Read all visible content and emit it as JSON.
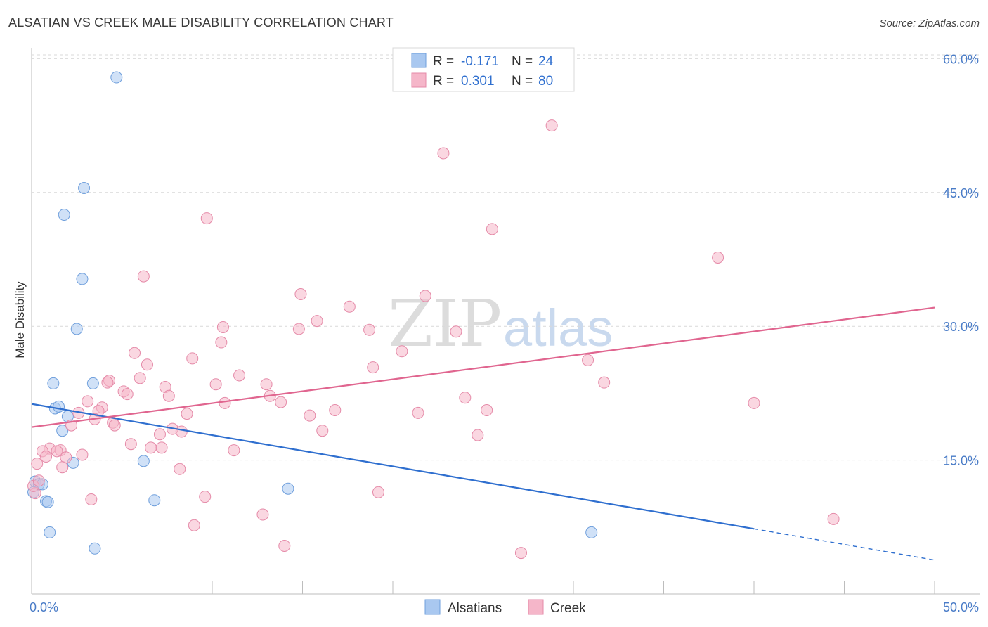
{
  "header": {
    "title": "ALSATIAN VS CREEK MALE DISABILITY CORRELATION CHART",
    "source": "Source: ZipAtlas.com"
  },
  "watermark": {
    "zip": "ZIP",
    "atlas": "atlas"
  },
  "legend_top": {
    "rows": [
      {
        "r_label": "R =",
        "r_value": "-0.171",
        "n_label": "N =",
        "n_value": "24",
        "color": "#a9c8f0"
      },
      {
        "r_label": "R =",
        "r_value": "0.301",
        "n_label": "N =",
        "n_value": "80",
        "color": "#f5b6c9"
      }
    ]
  },
  "legend_bottom": {
    "items": [
      {
        "label": "Alsatians",
        "color": "#a9c8f0"
      },
      {
        "label": "Creek",
        "color": "#f5b6c9"
      }
    ]
  },
  "chart_data": {
    "type": "scatter",
    "title": "ALSATIAN VS CREEK MALE DISABILITY CORRELATION CHART",
    "xlabel": "",
    "ylabel": "Male Disability",
    "xlim": [
      0,
      50
    ],
    "ylim": [
      0,
      62
    ],
    "x_tick_labels": [
      {
        "value": 0,
        "label": "0.0%"
      },
      {
        "value": 50,
        "label": "50.0%"
      }
    ],
    "y_tick_labels": [
      {
        "value": 15,
        "label": "15.0%"
      },
      {
        "value": 30,
        "label": "30.0%"
      },
      {
        "value": 45,
        "label": "45.0%"
      },
      {
        "value": 60,
        "label": "60.0%"
      }
    ],
    "grid": "horizontal dashed",
    "legend_position": "top-center",
    "series": [
      {
        "name": "Alsatians",
        "color": "#a9c8f0",
        "stroke": "#6f9fdc",
        "trend_color": "#2f6fcf",
        "trend": {
          "x0": 0,
          "y0": 21.3,
          "x1": 40,
          "y1": 7.3,
          "dash_to_x": 50,
          "dash_to_y": 3.8
        },
        "points": [
          [
            4.7,
            57.9
          ],
          [
            2.9,
            45.5
          ],
          [
            1.8,
            42.5
          ],
          [
            2.8,
            35.3
          ],
          [
            2.5,
            29.7
          ],
          [
            1.2,
            23.6
          ],
          [
            3.4,
            23.6
          ],
          [
            1.3,
            20.8
          ],
          [
            1.5,
            21.0
          ],
          [
            2.0,
            19.9
          ],
          [
            1.7,
            18.3
          ],
          [
            2.3,
            14.7
          ],
          [
            6.2,
            14.9
          ],
          [
            0.2,
            12.6
          ],
          [
            0.4,
            12.3
          ],
          [
            0.6,
            12.3
          ],
          [
            0.1,
            11.4
          ],
          [
            0.8,
            10.4
          ],
          [
            0.9,
            10.3
          ],
          [
            6.8,
            10.5
          ],
          [
            14.2,
            11.8
          ],
          [
            1.0,
            6.9
          ],
          [
            3.5,
            5.1
          ],
          [
            31.0,
            6.9
          ]
        ]
      },
      {
        "name": "Creek",
        "color": "#f5b6c9",
        "stroke": "#e58aa8",
        "trend_color": "#e0658f",
        "trend": {
          "x0": 0,
          "y0": 18.7,
          "x1": 50,
          "y1": 32.1
        },
        "points": [
          [
            28.8,
            52.5
          ],
          [
            22.8,
            49.4
          ],
          [
            9.7,
            42.1
          ],
          [
            25.5,
            40.9
          ],
          [
            38.0,
            37.7
          ],
          [
            6.2,
            35.6
          ],
          [
            14.9,
            33.6
          ],
          [
            21.8,
            33.4
          ],
          [
            17.6,
            32.2
          ],
          [
            10.6,
            29.9
          ],
          [
            14.8,
            29.7
          ],
          [
            15.8,
            30.6
          ],
          [
            18.7,
            29.6
          ],
          [
            23.5,
            29.4
          ],
          [
            10.5,
            28.2
          ],
          [
            5.7,
            27.0
          ],
          [
            8.9,
            26.4
          ],
          [
            20.5,
            27.2
          ],
          [
            6.4,
            25.7
          ],
          [
            18.9,
            25.4
          ],
          [
            11.5,
            24.5
          ],
          [
            6.0,
            24.2
          ],
          [
            30.8,
            26.2
          ],
          [
            4.3,
            23.9
          ],
          [
            4.2,
            23.7
          ],
          [
            7.4,
            23.2
          ],
          [
            10.2,
            23.5
          ],
          [
            13.0,
            23.5
          ],
          [
            31.7,
            23.7
          ],
          [
            5.1,
            22.7
          ],
          [
            5.3,
            22.4
          ],
          [
            13.2,
            22.2
          ],
          [
            7.6,
            22.2
          ],
          [
            24.0,
            22.0
          ],
          [
            40.0,
            21.4
          ],
          [
            13.8,
            21.5
          ],
          [
            10.7,
            21.4
          ],
          [
            3.1,
            21.6
          ],
          [
            3.9,
            20.9
          ],
          [
            3.7,
            20.5
          ],
          [
            16.8,
            20.6
          ],
          [
            25.2,
            20.6
          ],
          [
            21.4,
            20.3
          ],
          [
            2.6,
            20.3
          ],
          [
            8.6,
            20.2
          ],
          [
            15.4,
            20.0
          ],
          [
            3.5,
            19.6
          ],
          [
            2.2,
            18.9
          ],
          [
            4.5,
            19.2
          ],
          [
            4.6,
            18.9
          ],
          [
            7.8,
            18.5
          ],
          [
            8.3,
            18.2
          ],
          [
            16.1,
            18.3
          ],
          [
            24.7,
            17.8
          ],
          [
            7.1,
            17.9
          ],
          [
            5.5,
            16.8
          ],
          [
            6.6,
            16.4
          ],
          [
            7.2,
            16.4
          ],
          [
            11.2,
            16.1
          ],
          [
            1.0,
            16.3
          ],
          [
            1.6,
            16.1
          ],
          [
            0.6,
            16.0
          ],
          [
            1.4,
            16.0
          ],
          [
            2.8,
            15.6
          ],
          [
            0.8,
            15.4
          ],
          [
            1.9,
            15.3
          ],
          [
            0.3,
            14.6
          ],
          [
            1.7,
            14.2
          ],
          [
            8.2,
            14.0
          ],
          [
            19.2,
            11.4
          ],
          [
            9.6,
            10.9
          ],
          [
            3.3,
            10.6
          ],
          [
            0.2,
            11.3
          ],
          [
            12.8,
            8.9
          ],
          [
            9.0,
            7.7
          ],
          [
            44.4,
            8.4
          ],
          [
            14.0,
            5.4
          ],
          [
            27.1,
            4.6
          ],
          [
            0.1,
            12.1
          ],
          [
            0.4,
            12.7
          ]
        ]
      }
    ]
  }
}
